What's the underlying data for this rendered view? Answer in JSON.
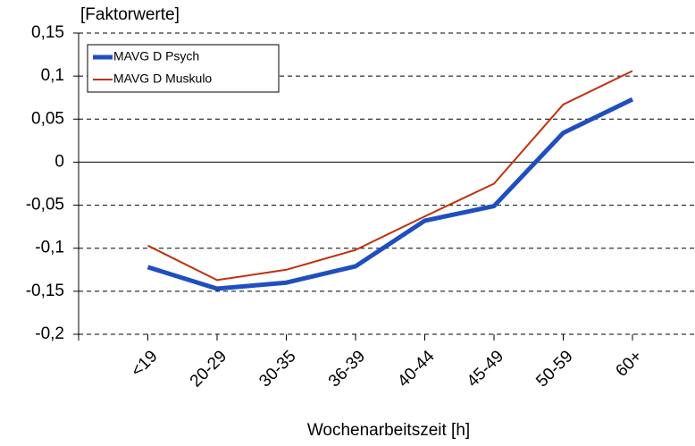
{
  "chart_data": {
    "type": "line",
    "y_unit_label": "[Faktorwerte]",
    "x_label": "Wochenarbeitszeit [h]",
    "categories": [
      "<19",
      "20-29",
      "30-35",
      "36-39",
      "40-44",
      "45-49",
      "50-59",
      "60+"
    ],
    "series": [
      {
        "name": "MAVG D Psych",
        "color": "#1f4fbf",
        "width": 5,
        "values": [
          -0.122,
          -0.147,
          -0.14,
          -0.121,
          -0.068,
          -0.051,
          0.034,
          0.073
        ]
      },
      {
        "name": "MAVG D Muskulo",
        "color": "#c0300f",
        "width": 2,
        "values": [
          -0.097,
          -0.137,
          -0.125,
          -0.102,
          -0.063,
          -0.025,
          0.067,
          0.106
        ]
      }
    ],
    "ylim": [
      -0.2,
      0.15
    ],
    "yticks": [
      {
        "value": -0.2,
        "label": "-0,2"
      },
      {
        "value": -0.15,
        "label": "-0,15"
      },
      {
        "value": -0.1,
        "label": "-0,1"
      },
      {
        "value": -0.05,
        "label": "-0,05"
      },
      0,
      {
        "value": 0.05,
        "label": "0,05"
      },
      {
        "value": 0.1,
        "label": "0,1"
      },
      {
        "value": 0.15,
        "label": "0,15"
      }
    ],
    "grid": true,
    "legend": "upper left"
  }
}
